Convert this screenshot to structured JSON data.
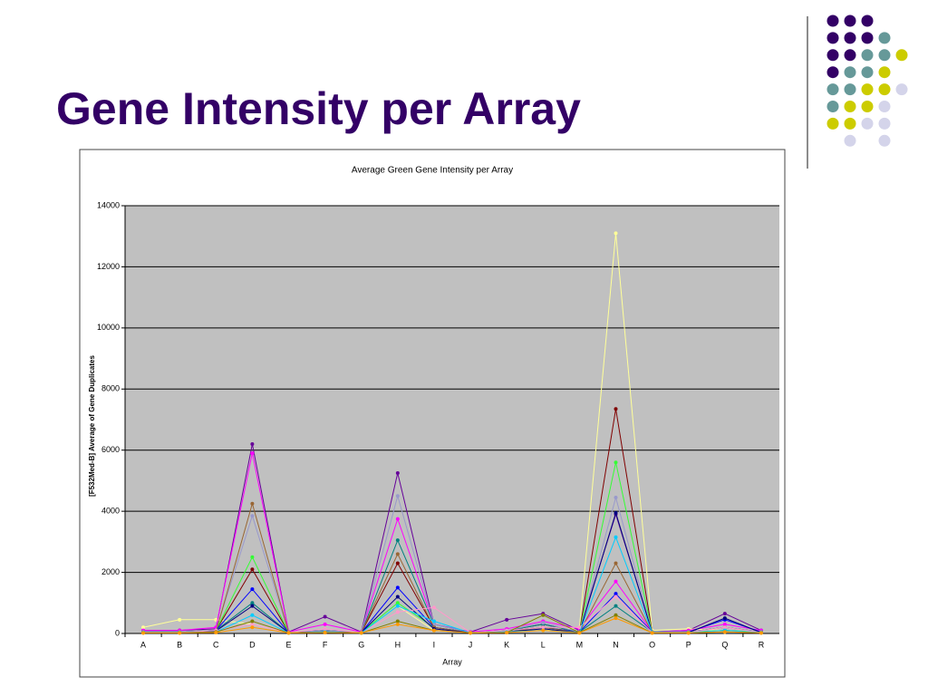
{
  "slide_title": "Gene Intensity per Array",
  "chart_data": {
    "type": "line",
    "title": "Average Green Gene Intensity per Array",
    "x_label": "Array",
    "y_label": "[F532Med-B] Average of Gene Duplicates",
    "categories": [
      "A",
      "B",
      "C",
      "D",
      "E",
      "F",
      "G",
      "H",
      "I",
      "J",
      "K",
      "L",
      "M",
      "N",
      "O",
      "P",
      "Q",
      "R"
    ],
    "ylim": [
      0,
      14000
    ],
    "yticks": [
      0,
      2000,
      4000,
      6000,
      8000,
      10000,
      12000,
      14000
    ],
    "grid": true,
    "series": [
      {
        "color": "#660099",
        "values": [
          100,
          100,
          150,
          6200,
          50,
          550,
          50,
          5250,
          300,
          50,
          450,
          650,
          100,
          3900,
          50,
          100,
          650,
          100
        ]
      },
      {
        "color": "#ffff99",
        "values": [
          200,
          450,
          450,
          300,
          30,
          50,
          30,
          900,
          100,
          30,
          50,
          100,
          200,
          13100,
          100,
          150,
          100,
          50
        ]
      },
      {
        "color": "#ff00ff",
        "values": [
          100,
          100,
          200,
          5900,
          50,
          300,
          50,
          3750,
          300,
          50,
          150,
          400,
          150,
          1700,
          50,
          100,
          300,
          100
        ]
      },
      {
        "color": "#800000",
        "values": [
          50,
          50,
          100,
          2100,
          30,
          50,
          30,
          2300,
          200,
          30,
          100,
          300,
          50,
          7350,
          50,
          50,
          200,
          50
        ]
      },
      {
        "color": "#33ff33",
        "values": [
          50,
          50,
          100,
          2500,
          30,
          100,
          30,
          1000,
          200,
          30,
          100,
          200,
          50,
          5600,
          50,
          50,
          100,
          50
        ]
      },
      {
        "color": "#0000ff",
        "values": [
          50,
          50,
          100,
          1450,
          30,
          100,
          30,
          1500,
          200,
          30,
          100,
          200,
          50,
          1300,
          50,
          50,
          450,
          50
        ]
      },
      {
        "color": "#008080",
        "values": [
          50,
          50,
          100,
          1000,
          30,
          100,
          30,
          3050,
          300,
          30,
          100,
          300,
          50,
          900,
          50,
          50,
          200,
          50
        ]
      },
      {
        "color": "#9999cc",
        "values": [
          50,
          50,
          100,
          3850,
          30,
          100,
          30,
          4500,
          300,
          30,
          100,
          350,
          50,
          4450,
          50,
          50,
          200,
          50
        ]
      },
      {
        "color": "#996633",
        "values": [
          30,
          30,
          50,
          4250,
          30,
          50,
          30,
          2600,
          200,
          30,
          50,
          200,
          30,
          2300,
          30,
          30,
          100,
          30
        ]
      },
      {
        "color": "#000080",
        "values": [
          30,
          30,
          80,
          900,
          30,
          50,
          30,
          1200,
          150,
          30,
          50,
          150,
          30,
          3950,
          30,
          30,
          500,
          30
        ]
      },
      {
        "color": "#ff99cc",
        "values": [
          30,
          30,
          100,
          300,
          30,
          150,
          30,
          700,
          850,
          30,
          100,
          200,
          200,
          1200,
          30,
          30,
          200,
          30
        ]
      },
      {
        "color": "#00ccff",
        "values": [
          30,
          30,
          50,
          600,
          20,
          50,
          20,
          900,
          400,
          20,
          50,
          100,
          30,
          3150,
          30,
          30,
          100,
          30
        ]
      },
      {
        "color": "#808000",
        "values": [
          20,
          20,
          50,
          400,
          20,
          30,
          20,
          400,
          100,
          20,
          30,
          600,
          30,
          600,
          20,
          20,
          50,
          20
        ]
      },
      {
        "color": "#ff9900",
        "values": [
          20,
          20,
          30,
          200,
          20,
          30,
          20,
          300,
          100,
          20,
          30,
          100,
          20,
          500,
          20,
          20,
          50,
          20
        ]
      }
    ]
  }
}
